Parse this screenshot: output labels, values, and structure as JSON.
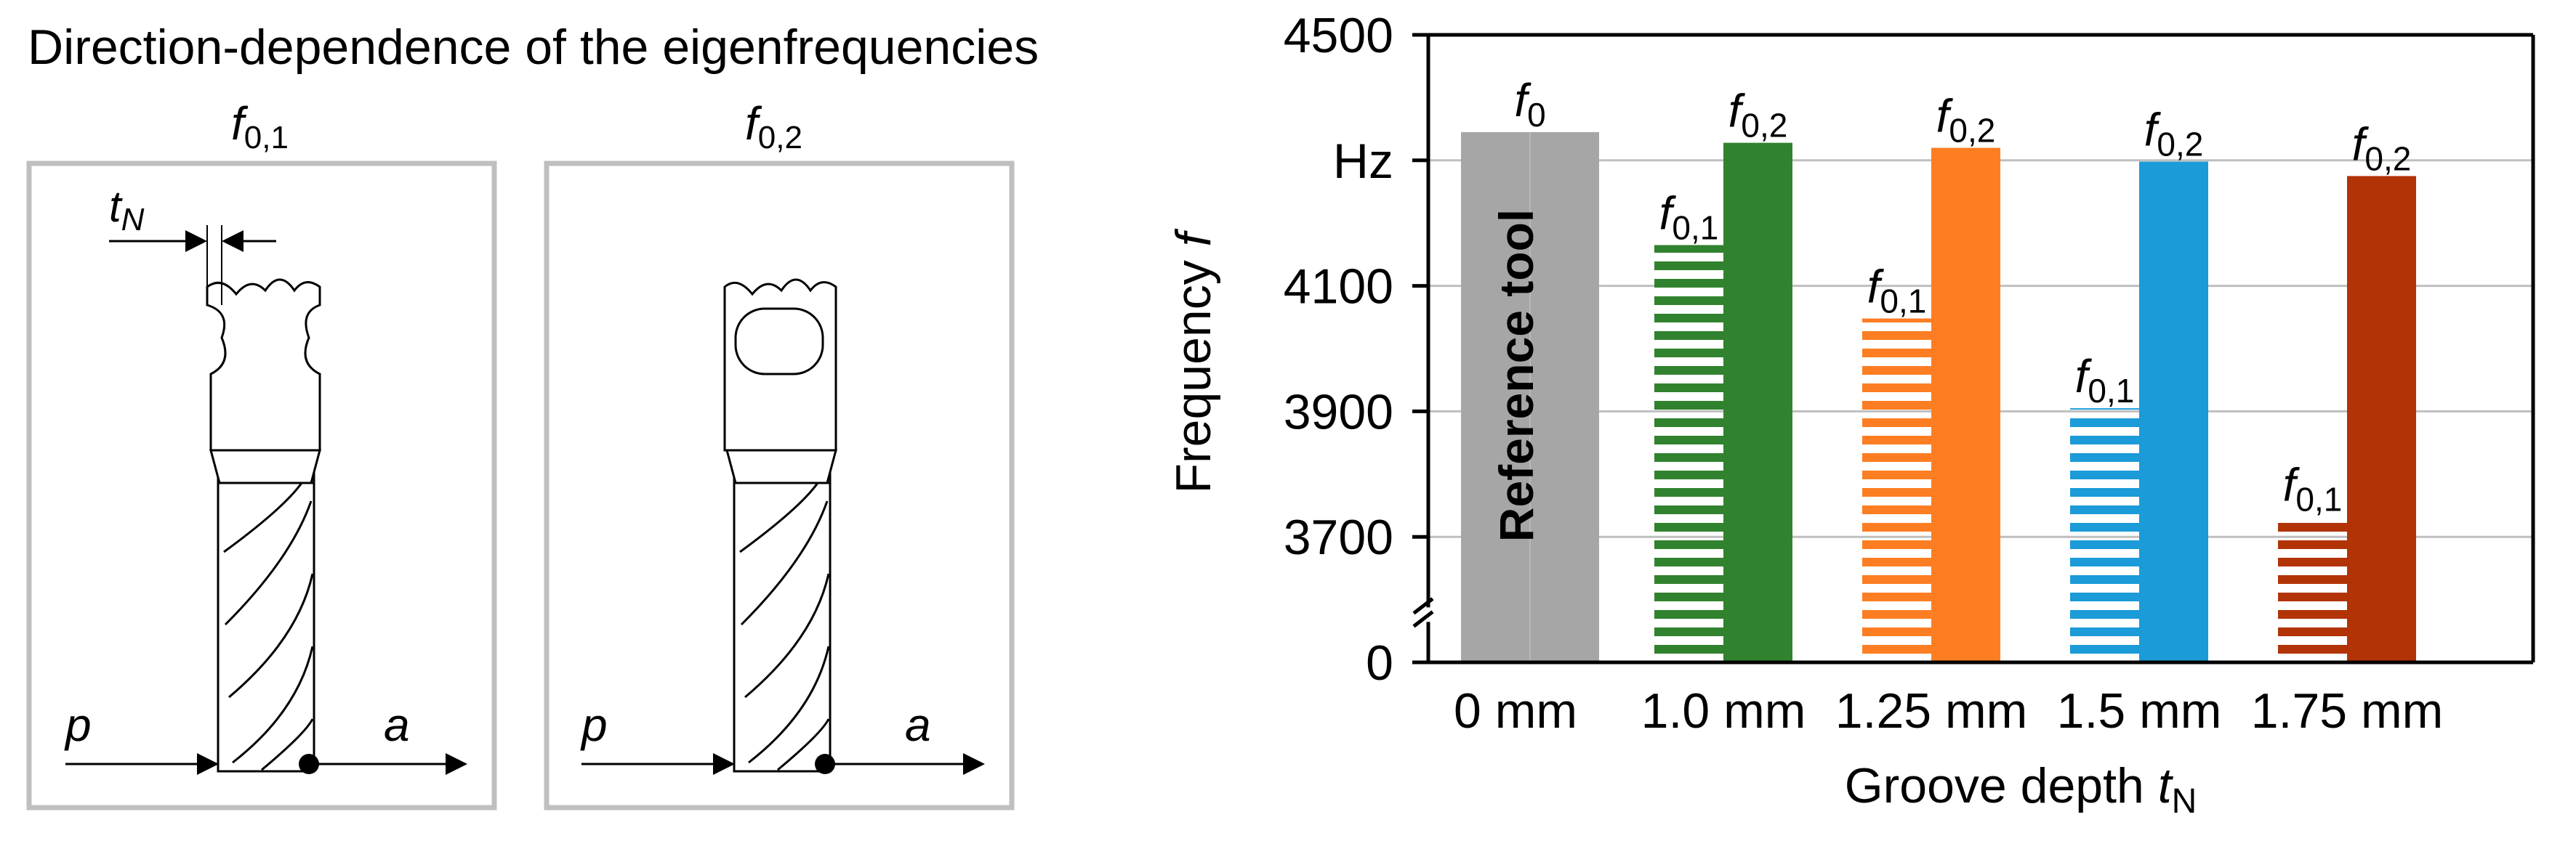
{
  "left_panel": {
    "title": "Direction-dependence of the eigenfrequencies",
    "diagrams": [
      {
        "label": "f",
        "label_sub": "0,1",
        "groove_label": "t",
        "groove_label_sub": "N",
        "left_arrow_label": "p",
        "right_arrow_label": "a"
      },
      {
        "label": "f",
        "label_sub": "0,2",
        "left_arrow_label": "p",
        "right_arrow_label": "a"
      }
    ]
  },
  "chart_data": {
    "type": "bar",
    "xlabel": "Groove depth ",
    "xlabel_var": "t",
    "xlabel_sub": "N",
    "ylabel": "Frequency ",
    "ylabel_var": "f",
    "y_ticks": [
      "4500",
      "Hz",
      "4100",
      "3900",
      "3700",
      "0"
    ],
    "y_tick_values": [
      4500,
      4300,
      4100,
      3900,
      3700,
      3500
    ],
    "ylim": [
      3500,
      4500
    ],
    "axis_break": true,
    "gridlines": true,
    "categories": [
      "0 mm",
      "1.0 mm",
      "1.25 mm",
      "1.5 mm",
      "1.75 mm"
    ],
    "colors": [
      "#a6a6a6",
      "#31822e",
      "#fd7e22",
      "#1b9bd8",
      "#b13306"
    ],
    "bars": [
      {
        "category_index": 0,
        "label": "f",
        "label_sub": "0",
        "value": 4345,
        "pattern": "solid",
        "inner_text": "Reference tool"
      },
      {
        "category_index": 1,
        "label": "f",
        "label_sub": "0,1",
        "value": 4165,
        "pattern": "striped"
      },
      {
        "category_index": 1,
        "label": "f",
        "label_sub": "0,2",
        "value": 4328,
        "pattern": "solid"
      },
      {
        "category_index": 2,
        "label": "f",
        "label_sub": "0,1",
        "value": 4048,
        "pattern": "striped"
      },
      {
        "category_index": 2,
        "label": "f",
        "label_sub": "0,2",
        "value": 4320,
        "pattern": "solid"
      },
      {
        "category_index": 3,
        "label": "f",
        "label_sub": "0,1",
        "value": 3905,
        "pattern": "striped"
      },
      {
        "category_index": 3,
        "label": "f",
        "label_sub": "0,2",
        "value": 4298,
        "pattern": "solid"
      },
      {
        "category_index": 4,
        "label": "f",
        "label_sub": "0,1",
        "value": 3732,
        "pattern": "striped"
      },
      {
        "category_index": 4,
        "label": "f",
        "label_sub": "0,2",
        "value": 4275,
        "pattern": "solid"
      }
    ]
  }
}
